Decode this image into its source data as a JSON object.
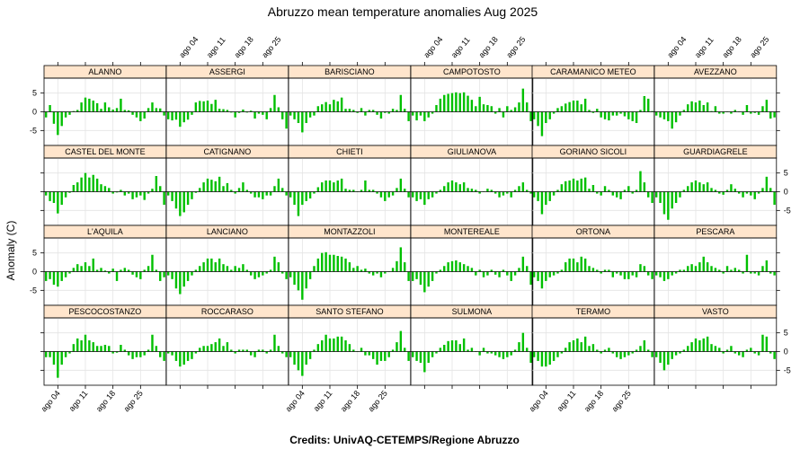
{
  "chart_data": {
    "type": "bar",
    "title": "Abruzzo mean temperature anomalies Aug 2025",
    "ylabel": "Anomaly (C)",
    "credits": "Credits: UnivAQ-CETEMPS/Regione Abruzzo",
    "ylim": [
      -9,
      9
    ],
    "y_ticks": [
      -5,
      0,
      5
    ],
    "y_tick_labels": [
      "-5",
      "0",
      "5"
    ],
    "x_range": [
      0.5,
      31.5
    ],
    "x_ticks": [
      4,
      11,
      18,
      25
    ],
    "x_tick_labels": [
      "ago 04",
      "ago 11",
      "ago 18",
      "ago 25"
    ],
    "grid": true,
    "layout": {
      "columns": 6,
      "rows": 4
    },
    "bar_color": "#00c000",
    "panels": [
      {
        "name": "ALANNO",
        "values": [
          -1.5,
          1.8,
          -3.2,
          -6.2,
          -3.8,
          -1.5,
          -0.8,
          0.2,
          0.5,
          2.5,
          3.8,
          3.5,
          3.0,
          2.3,
          0.8,
          2.5,
          1.2,
          0.6,
          1.0,
          3.5,
          0.5,
          0.4,
          -0.8,
          -1.5,
          -2.5,
          -1.8,
          1.0,
          2.5,
          1.0,
          0.9,
          -1.0
        ]
      },
      {
        "name": "ASSERGI",
        "values": [
          -2.0,
          -2.3,
          -2.1,
          -4.0,
          -2.8,
          -2.1,
          -0.8,
          2.5,
          2.9,
          2.8,
          3.0,
          2.1,
          3.2,
          0.8,
          0.7,
          0.5,
          -0.2,
          -1.5,
          -0.3,
          0.6,
          -0.2,
          0.3,
          -1.8,
          -0.5,
          -0.8,
          -2.0,
          1.0,
          4.5,
          1.2,
          -2.0,
          -4.5
        ]
      },
      {
        "name": "BARISCIANO",
        "values": [
          -1.0,
          -2.0,
          -3.0,
          -5.5,
          -3.0,
          -1.5,
          -1.0,
          1.5,
          2.0,
          2.6,
          2.0,
          3.2,
          2.8,
          3.8,
          0.8,
          0.8,
          0.5,
          -0.3,
          1.0,
          -1.0,
          0.5,
          0.5,
          -0.8,
          -1.8,
          -0.3,
          -0.5,
          0.8,
          0.5,
          4.5,
          0.8,
          -2.5
        ]
      },
      {
        "name": "CAMPOTOSTO",
        "values": [
          -1.0,
          -2.3,
          -1.0,
          -2.5,
          -1.5,
          -0.5,
          1.8,
          3.5,
          4.5,
          4.8,
          5.0,
          5.2,
          5.0,
          5.2,
          4.3,
          3.2,
          1.5,
          4.0,
          2.0,
          1.8,
          1.5,
          -0.5,
          1.0,
          -1.5,
          1.5,
          0.5,
          1.2,
          2.5,
          6.2,
          2.5,
          -2.5
        ]
      },
      {
        "name": "CARAMANICO METEO",
        "values": [
          -2.0,
          -3.8,
          -6.5,
          -3.0,
          -2.0,
          -0.5,
          1.0,
          1.5,
          2.2,
          2.6,
          3.0,
          3.0,
          2.0,
          3.5,
          0.5,
          -0.3,
          0.8,
          -1.5,
          -2.0,
          -2.3,
          -1.0,
          -1.0,
          -0.5,
          -1.2,
          -2.0,
          -2.5,
          -3.0,
          0.5,
          4.2,
          3.5,
          0.2
        ]
      },
      {
        "name": "AVEZZANO",
        "values": [
          -1.0,
          -1.5,
          -2.0,
          -2.5,
          -4.5,
          -2.8,
          -1.0,
          0.5,
          2.0,
          2.8,
          2.5,
          3.0,
          1.8,
          2.5,
          0.2,
          1.5,
          -0.5,
          -0.5,
          0.0,
          -0.5,
          0.5,
          0.0,
          -0.8,
          1.8,
          -0.5,
          -0.3,
          -0.8,
          1.5,
          3.2,
          -1.8,
          -1.5
        ]
      },
      {
        "name": "CASTEL DEL MONTE",
        "values": [
          -1.0,
          -2.5,
          -3.0,
          -5.8,
          -3.5,
          -1.5,
          -0.3,
          1.8,
          2.5,
          3.8,
          5.0,
          3.8,
          4.5,
          3.5,
          2.0,
          1.5,
          1.0,
          -0.5,
          -0.2,
          0.5,
          -1.0,
          -0.5,
          -2.0,
          -1.5,
          -1.0,
          -2.2,
          -0.5,
          0.8,
          4.2,
          1.5,
          -3.5
        ]
      },
      {
        "name": "CATIGNANO",
        "values": [
          -1.0,
          -2.5,
          -4.5,
          -6.5,
          -5.5,
          -3.5,
          -2.0,
          -0.3,
          1.0,
          2.5,
          3.5,
          3.2,
          2.8,
          4.0,
          1.5,
          2.3,
          0.5,
          -0.5,
          1.0,
          2.5,
          0.5,
          -0.5,
          -1.5,
          -1.5,
          -2.0,
          -1.0,
          -1.0,
          1.5,
          3.5,
          1.0,
          -1.0
        ]
      },
      {
        "name": "CHIETI",
        "values": [
          -1.5,
          -3.5,
          -6.5,
          -3.5,
          -2.5,
          -1.8,
          -0.5,
          1.2,
          2.5,
          3.0,
          3.0,
          2.5,
          3.0,
          3.5,
          0.8,
          0.5,
          0.5,
          0.0,
          0.5,
          3.0,
          0.5,
          0.5,
          -0.5,
          -1.5,
          -2.5,
          -1.5,
          -1.0,
          1.0,
          3.5,
          0.8,
          -1.5
        ]
      },
      {
        "name": "GIULIANOVA",
        "values": [
          -1.5,
          -2.5,
          -2.0,
          -3.5,
          -2.0,
          -1.5,
          -0.5,
          0.5,
          1.5,
          2.5,
          3.0,
          2.5,
          2.0,
          2.5,
          1.0,
          0.8,
          0.5,
          -0.5,
          0.0,
          0.8,
          0.5,
          -0.5,
          -1.5,
          -1.0,
          -0.5,
          -1.5,
          0.5,
          1.5,
          2.5,
          0.5,
          -0.5
        ]
      },
      {
        "name": "GORIANO SICOLI",
        "values": [
          -1.5,
          -2.5,
          -6.0,
          -3.5,
          -2.5,
          -1.0,
          0.5,
          2.0,
          2.8,
          3.0,
          3.5,
          3.0,
          3.5,
          3.8,
          0.8,
          1.8,
          -0.5,
          -1.0,
          1.5,
          0.5,
          -1.0,
          -1.5,
          -2.0,
          0.5,
          1.5,
          -0.5,
          0.5,
          5.5,
          2.5,
          -1.5,
          -3.0
        ]
      },
      {
        "name": "GUARDIAGRELE",
        "values": [
          -1.5,
          -3.0,
          -6.0,
          -7.5,
          -4.5,
          -3.0,
          -1.5,
          0.5,
          1.5,
          2.5,
          3.0,
          2.5,
          2.0,
          2.5,
          1.0,
          0.5,
          -0.5,
          -0.8,
          0.5,
          2.0,
          0.8,
          -0.5,
          -1.5,
          -0.5,
          -1.0,
          -2.0,
          -0.5,
          1.0,
          4.0,
          1.0,
          -3.5
        ]
      },
      {
        "name": "L'AQUILA",
        "values": [
          -2.5,
          -2.0,
          -3.5,
          -4.0,
          -2.5,
          -1.5,
          -0.5,
          1.0,
          2.0,
          1.5,
          2.5,
          1.5,
          3.5,
          0.5,
          1.0,
          0.3,
          -0.5,
          0.8,
          -2.5,
          0.5,
          1.0,
          0.5,
          -0.8,
          -1.5,
          -2.0,
          0.5,
          1.5,
          4.5,
          0.5,
          -2.5,
          -1.5
        ]
      },
      {
        "name": "LANCIANO",
        "values": [
          -1.0,
          -2.0,
          -4.5,
          -6.0,
          -4.0,
          -2.5,
          -1.0,
          0.5,
          1.5,
          2.5,
          3.5,
          3.5,
          2.5,
          3.5,
          2.0,
          1.5,
          0.5,
          1.5,
          1.0,
          2.0,
          0.5,
          -1.0,
          -2.0,
          -1.5,
          -1.0,
          -0.5,
          0.5,
          4.0,
          2.5,
          -0.5,
          -2.0
        ]
      },
      {
        "name": "MONTAZZOLI",
        "values": [
          -1.5,
          -3.5,
          -5.0,
          -7.5,
          -4.5,
          -2.0,
          1.5,
          3.5,
          5.0,
          5.2,
          4.5,
          4.5,
          4.2,
          4.0,
          3.5,
          2.5,
          1.0,
          1.5,
          0.5,
          0.8,
          -0.5,
          -1.0,
          -0.5,
          -1.5,
          -0.5,
          0.0,
          1.0,
          2.8,
          6.5,
          2.5,
          -2.5
        ]
      },
      {
        "name": "MONTEREALE",
        "values": [
          -2.5,
          -2.0,
          -3.5,
          -5.5,
          -4.0,
          -2.5,
          -0.5,
          0.5,
          1.5,
          2.5,
          2.8,
          3.0,
          2.5,
          2.0,
          1.5,
          1.0,
          -1.0,
          0.5,
          -1.5,
          -1.0,
          0.5,
          -0.8,
          -1.5,
          0.5,
          -1.0,
          -2.5,
          -1.0,
          1.0,
          4.0,
          1.5,
          -3.5
        ]
      },
      {
        "name": "ORTONA",
        "values": [
          -1.5,
          -2.5,
          -4.5,
          -2.5,
          -1.5,
          -1.0,
          -0.5,
          0.5,
          2.5,
          3.5,
          3.5,
          2.5,
          4.0,
          3.5,
          1.5,
          1.0,
          0.5,
          -0.5,
          0.5,
          0.5,
          -1.5,
          -0.5,
          -1.0,
          -2.0,
          -2.0,
          -1.0,
          -1.5,
          2.0,
          1.5,
          -1.0,
          -2.0
        ]
      },
      {
        "name": "PESCARA",
        "values": [
          -1.0,
          -1.5,
          -2.5,
          -2.0,
          -1.0,
          -0.5,
          0.5,
          0.5,
          1.5,
          2.0,
          1.5,
          2.5,
          4.0,
          2.5,
          1.5,
          1.0,
          0.5,
          -0.5,
          1.5,
          0.5,
          1.0,
          0.5,
          -0.5,
          4.5,
          -0.5,
          -0.5,
          -1.0,
          1.5,
          3.0,
          -0.5,
          -1.0
        ]
      },
      {
        "name": "PESCOCOSTANZO",
        "values": [
          -1.5,
          -1.5,
          -3.5,
          -7.0,
          -3.5,
          -1.5,
          -0.5,
          2.0,
          3.5,
          3.0,
          4.5,
          3.0,
          2.5,
          1.5,
          1.5,
          1.8,
          1.5,
          -0.5,
          -0.3,
          1.8,
          0.5,
          -1.0,
          -2.0,
          -1.5,
          -1.5,
          -1.0,
          0.5,
          4.5,
          1.5,
          -1.5,
          -2.5
        ]
      },
      {
        "name": "ROCCARASO",
        "values": [
          -0.5,
          -1.0,
          -2.5,
          -4.0,
          -3.5,
          -2.5,
          -2.0,
          -0.5,
          1.0,
          1.5,
          1.5,
          2.0,
          2.5,
          3.5,
          1.5,
          2.5,
          0.5,
          -0.5,
          0.5,
          0.5,
          0.5,
          -1.0,
          -1.5,
          0.5,
          0.5,
          -0.5,
          0.5,
          4.5,
          1.5,
          -0.5,
          -1.5
        ]
      },
      {
        "name": "SANTO STEFANO",
        "values": [
          -1.5,
          -3.5,
          -5.0,
          -6.5,
          -3.5,
          -2.0,
          0.5,
          2.0,
          3.0,
          4.5,
          3.5,
          3.5,
          4.0,
          4.0,
          3.0,
          2.0,
          0.5,
          0.0,
          1.0,
          -1.0,
          -1.0,
          -2.0,
          -3.5,
          -2.5,
          -2.5,
          -1.5,
          0.5,
          2.5,
          5.5,
          1.0,
          -2.5
        ]
      },
      {
        "name": "SULMONA",
        "values": [
          -1.5,
          -2.5,
          -3.0,
          -5.5,
          -3.0,
          -1.5,
          -0.5,
          1.0,
          1.8,
          2.8,
          3.0,
          3.0,
          2.0,
          3.5,
          0.5,
          1.0,
          0.0,
          -1.0,
          1.0,
          -0.5,
          -0.5,
          -1.0,
          -1.5,
          -2.0,
          -1.5,
          -1.0,
          0.5,
          2.5,
          5.0,
          1.0,
          -3.0
        ]
      },
      {
        "name": "TERAMO",
        "values": [
          -1.5,
          -2.5,
          -4.0,
          -4.0,
          -3.5,
          -2.5,
          -1.5,
          -0.5,
          1.0,
          2.5,
          3.0,
          3.5,
          2.5,
          4.0,
          1.5,
          2.0,
          0.5,
          -0.5,
          0.5,
          1.0,
          -0.5,
          -1.5,
          -2.0,
          -1.5,
          -1.0,
          -0.5,
          0.5,
          1.5,
          3.0,
          0.5,
          -1.5
        ]
      },
      {
        "name": "VASTO",
        "values": [
          -1.5,
          -3.0,
          -5.0,
          -3.5,
          -2.0,
          -1.0,
          -0.5,
          0.5,
          1.5,
          2.5,
          3.5,
          3.0,
          3.5,
          4.0,
          2.0,
          1.5,
          1.0,
          -0.5,
          0.5,
          1.5,
          -0.5,
          -1.0,
          -1.5,
          0.5,
          1.0,
          -0.5,
          -1.0,
          4.5,
          4.0,
          -0.5,
          -2.0
        ]
      }
    ]
  }
}
